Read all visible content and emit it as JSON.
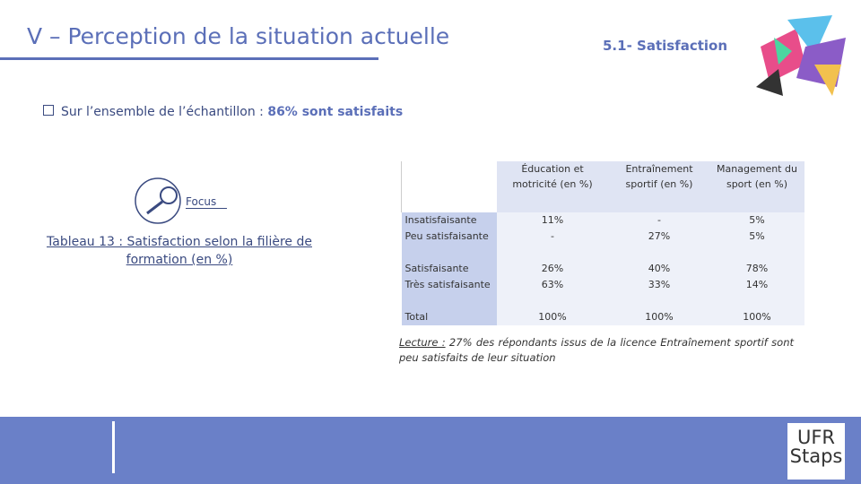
{
  "header": {
    "title": "V – Perception de la situation actuelle",
    "section": "5.1- Satisfaction"
  },
  "bullet": {
    "text": "Sur l’ensemble de l’échantillon : ",
    "highlight": "86% sont satisfaits"
  },
  "focus": {
    "label": "Focus",
    "caption": "Tableau 13 : Satisfaction selon la filière de formation (en %)"
  },
  "table": {
    "columns": [
      "Éducation et motricité (en %)",
      "Entraînement sportif (en %)",
      "Management du sport (en %)"
    ],
    "rows": [
      [
        "Insatisfaisante",
        "11%",
        "-",
        "5%"
      ],
      [
        "Peu satisfaisante",
        "-",
        "27%",
        "5%"
      ],
      [
        "Satisfaisante",
        "26%",
        "40%",
        "78%"
      ],
      [
        "Très satisfaisante",
        "63%",
        "33%",
        "14%"
      ],
      [
        "Total",
        "100%",
        "100%",
        "100%"
      ]
    ]
  },
  "note": {
    "lead": "Lecture :",
    "text": " 27% des répondants issus de la licence Entraînement sportif sont peu satisfaits de leur situation"
  },
  "logo": {
    "line1": "UFR",
    "line2": "Staps"
  }
}
